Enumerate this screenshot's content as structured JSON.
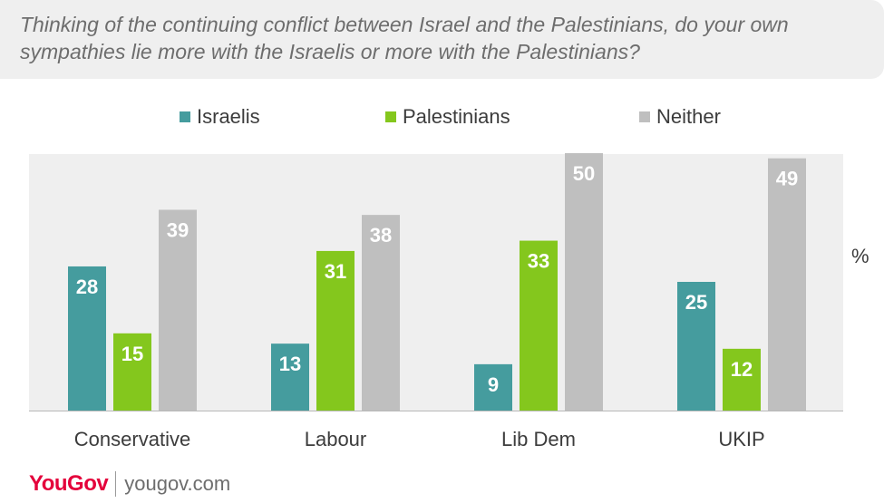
{
  "title": "Thinking of the continuing conflict between Israel and the Palestinians, do your own sympathies lie more with the Israelis or more with the Palestinians?",
  "unit_label": "%",
  "brand": {
    "logo": "YouGov",
    "url": "yougov.com"
  },
  "colors": {
    "Israelis": "#459c9e",
    "Palestinians": "#84c71d",
    "Neither": "#bfbfbf"
  },
  "chart_data": {
    "type": "bar",
    "title": "Thinking of the continuing conflict between Israel and the Palestinians, do your own sympathies lie more with the Israelis or more with the Palestinians?",
    "categories": [
      "Conservative",
      "Labour",
      "Lib Dem",
      "UKIP"
    ],
    "series": [
      {
        "name": "Israelis",
        "values": [
          28,
          13,
          9,
          25
        ]
      },
      {
        "name": "Palestinians",
        "values": [
          15,
          31,
          33,
          12
        ]
      },
      {
        "name": "Neither",
        "values": [
          39,
          38,
          50,
          49
        ]
      }
    ],
    "ylabel": "%",
    "ylim": [
      0,
      52
    ],
    "legend_position": "top",
    "grid": false
  }
}
